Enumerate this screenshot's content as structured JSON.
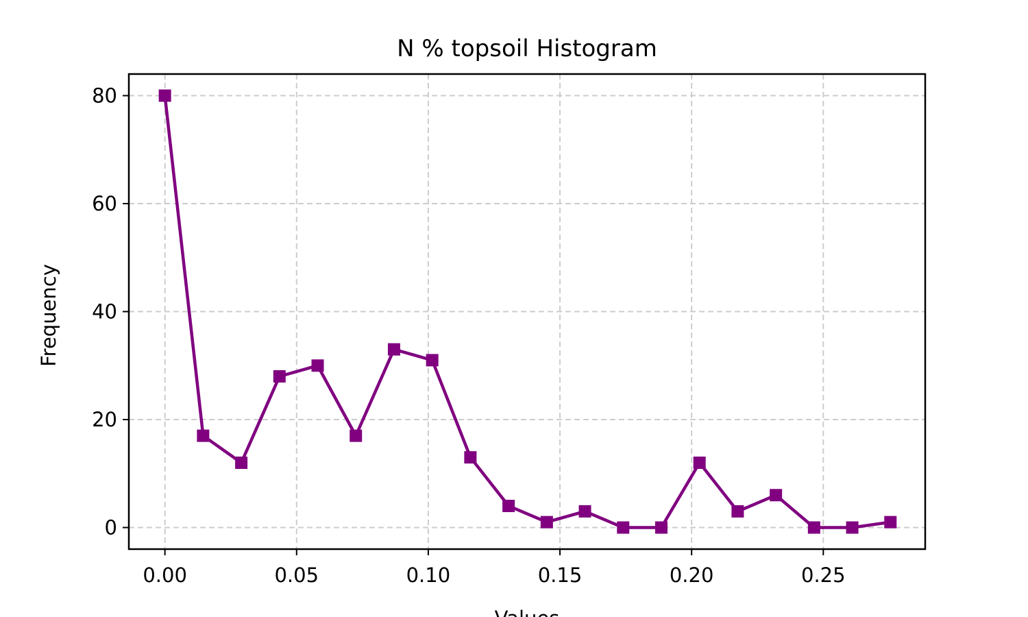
{
  "chart_data": {
    "type": "line",
    "title": "N % topsoil Histogram",
    "xlabel": "Values",
    "ylabel": "Frequency",
    "xlim": [
      -0.0137,
      0.2887
    ],
    "ylim": [
      -4,
      84
    ],
    "xticks": [
      0.0,
      0.05,
      0.1,
      0.15,
      0.2,
      0.25
    ],
    "xtick_labels": [
      "0.00",
      "0.05",
      "0.10",
      "0.15",
      "0.20",
      "0.25"
    ],
    "yticks": [
      0,
      20,
      40,
      60,
      80
    ],
    "ytick_labels": [
      "0",
      "20",
      "40",
      "60",
      "80"
    ],
    "grid": true,
    "series": [
      {
        "color": "#800080",
        "marker": "square",
        "x": [
          0.0,
          0.0145,
          0.029,
          0.0435,
          0.058,
          0.0725,
          0.087,
          0.1015,
          0.116,
          0.1305,
          0.145,
          0.1595,
          0.174,
          0.1885,
          0.203,
          0.2175,
          0.232,
          0.2465,
          0.261,
          0.2755
        ],
        "y": [
          80,
          17,
          12,
          28,
          30,
          17,
          33,
          31,
          13,
          4,
          1,
          3,
          0,
          0,
          12,
          3,
          6,
          0,
          0,
          1
        ]
      }
    ]
  }
}
